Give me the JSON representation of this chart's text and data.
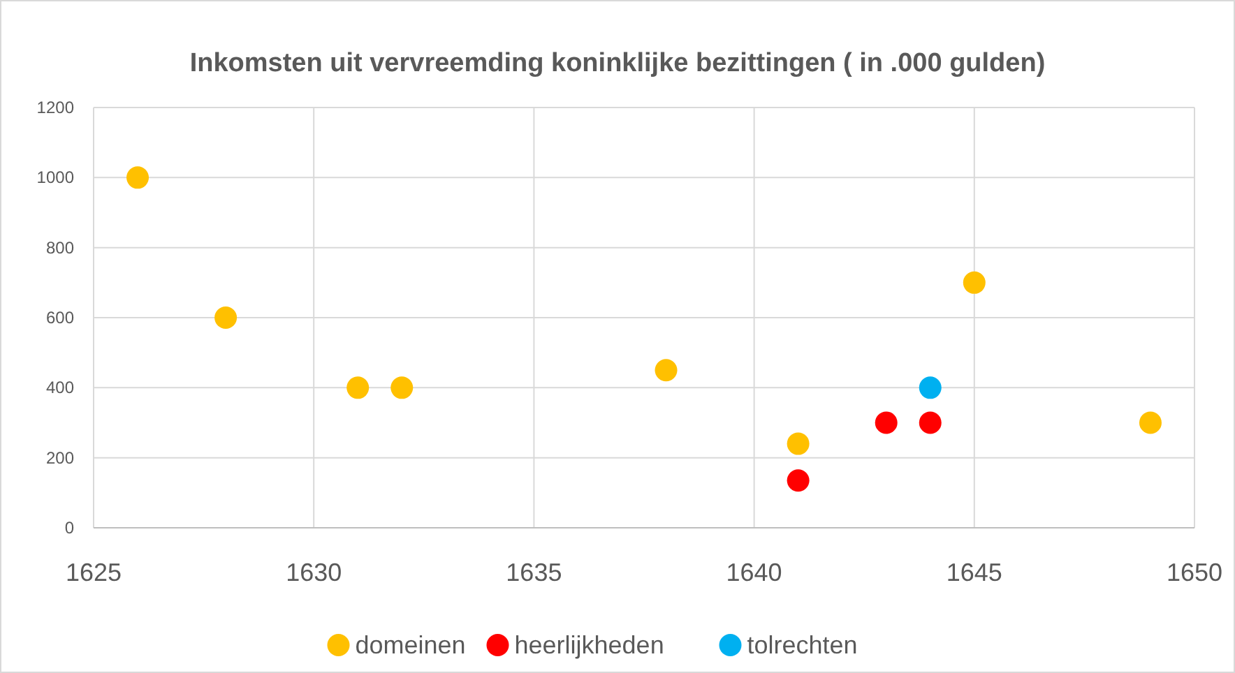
{
  "chart_data": {
    "type": "scatter",
    "title": "Inkomsten uit vervreemding koninklijke bezittingen ( in .000 gulden)",
    "xlim": [
      1625,
      1650
    ],
    "xticks": [
      1625,
      1630,
      1635,
      1640,
      1645,
      1650
    ],
    "ylim": [
      0,
      1200
    ],
    "yticks": [
      0,
      200,
      400,
      600,
      800,
      1000,
      1200
    ],
    "grid": true,
    "legend": "bottom",
    "marker": "circle",
    "series": [
      {
        "name": "domeinen",
        "color": "#ffc000",
        "x": [
          1626,
          1628,
          1631,
          1632,
          1638,
          1641,
          1645,
          1649
        ],
        "values": [
          1000,
          600,
          400,
          400,
          450,
          240,
          700,
          300
        ]
      },
      {
        "name": "heerlijkheden",
        "color": "#ff0000",
        "x": [
          1641,
          1643,
          1644
        ],
        "values": [
          135,
          300,
          300
        ]
      },
      {
        "name": "tolrechten",
        "color": "#00b0f0",
        "x": [
          1644
        ],
        "values": [
          400
        ]
      }
    ]
  }
}
